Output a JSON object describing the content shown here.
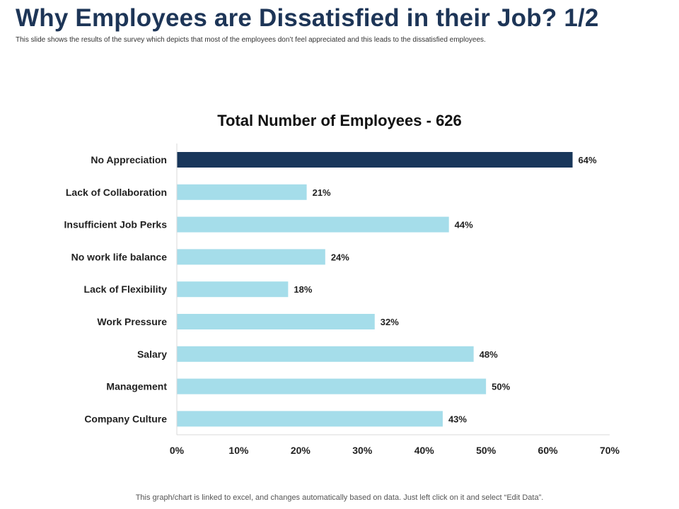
{
  "slide": {
    "title": "Why Employees are Dissatisfied in their Job? 1/2",
    "subtitle": "This slide shows the results of the survey which depicts that most of the employees don’t feel appreciated and this leads to the dissatisfied employees.",
    "footer": "This graph/chart is linked to excel, and changes automatically based on data. Just left click on it and select “Edit Data”."
  },
  "colors": {
    "highlight": "#18365a",
    "bar": "#a5ddea",
    "axis": "#d9d9d9",
    "title": "#1d3557"
  },
  "chart_data": {
    "type": "bar",
    "orientation": "horizontal",
    "title": "Total Number of Employees - 626",
    "categories": [
      "No Appreciation",
      "Lack of Collaboration",
      "Insufficient Job Perks",
      "No work life balance",
      "Lack of Flexibility",
      "Work Pressure",
      "Salary",
      "Management",
      "Company Culture"
    ],
    "values": [
      64,
      21,
      44,
      24,
      18,
      32,
      48,
      50,
      43
    ],
    "value_labels": [
      "64%",
      "21%",
      "44%",
      "24%",
      "18%",
      "32%",
      "48%",
      "50%",
      "43%"
    ],
    "highlight_index": 0,
    "xlim": [
      0,
      70
    ],
    "xticks": [
      0,
      10,
      20,
      30,
      40,
      50,
      60,
      70
    ],
    "xtick_labels": [
      "0%",
      "10%",
      "20%",
      "30%",
      "40%",
      "50%",
      "60%",
      "70%"
    ],
    "xlabel": "",
    "ylabel": "",
    "grid": false,
    "legend": "none"
  }
}
